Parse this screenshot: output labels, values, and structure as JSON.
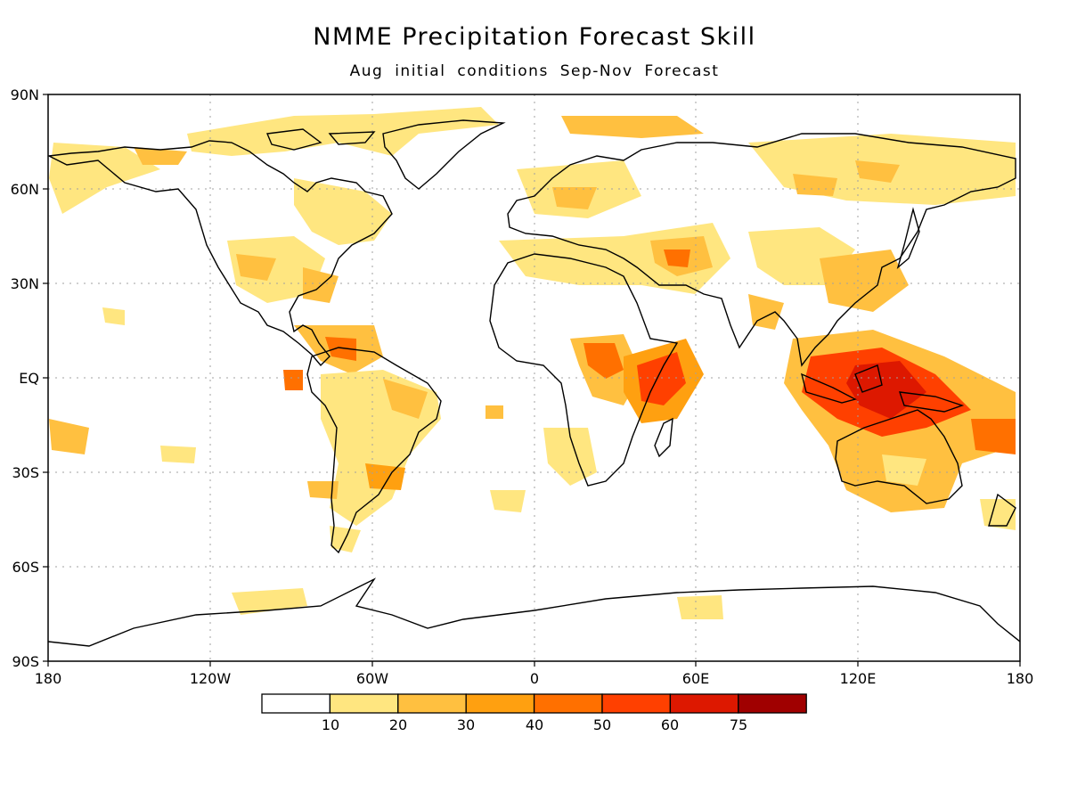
{
  "title": "NMME Precipitation Forecast Skill",
  "subtitle": "Aug initial conditions  Sep-Nov Forecast",
  "lat_labels": [
    "90N",
    "60N",
    "30N",
    "EQ",
    "30S",
    "60S",
    "90S"
  ],
  "lon_labels": [
    "180",
    "120W",
    "60W",
    "0",
    "60E",
    "120E",
    "180"
  ],
  "colorbar": {
    "levels": [
      "10",
      "20",
      "30",
      "40",
      "50",
      "60",
      "75"
    ],
    "colors": [
      "#ffffff",
      "#ffe680",
      "#ffc040",
      "#ffa010",
      "#ff7000",
      "#ff4000",
      "#dd1800",
      "#a00000"
    ]
  }
}
